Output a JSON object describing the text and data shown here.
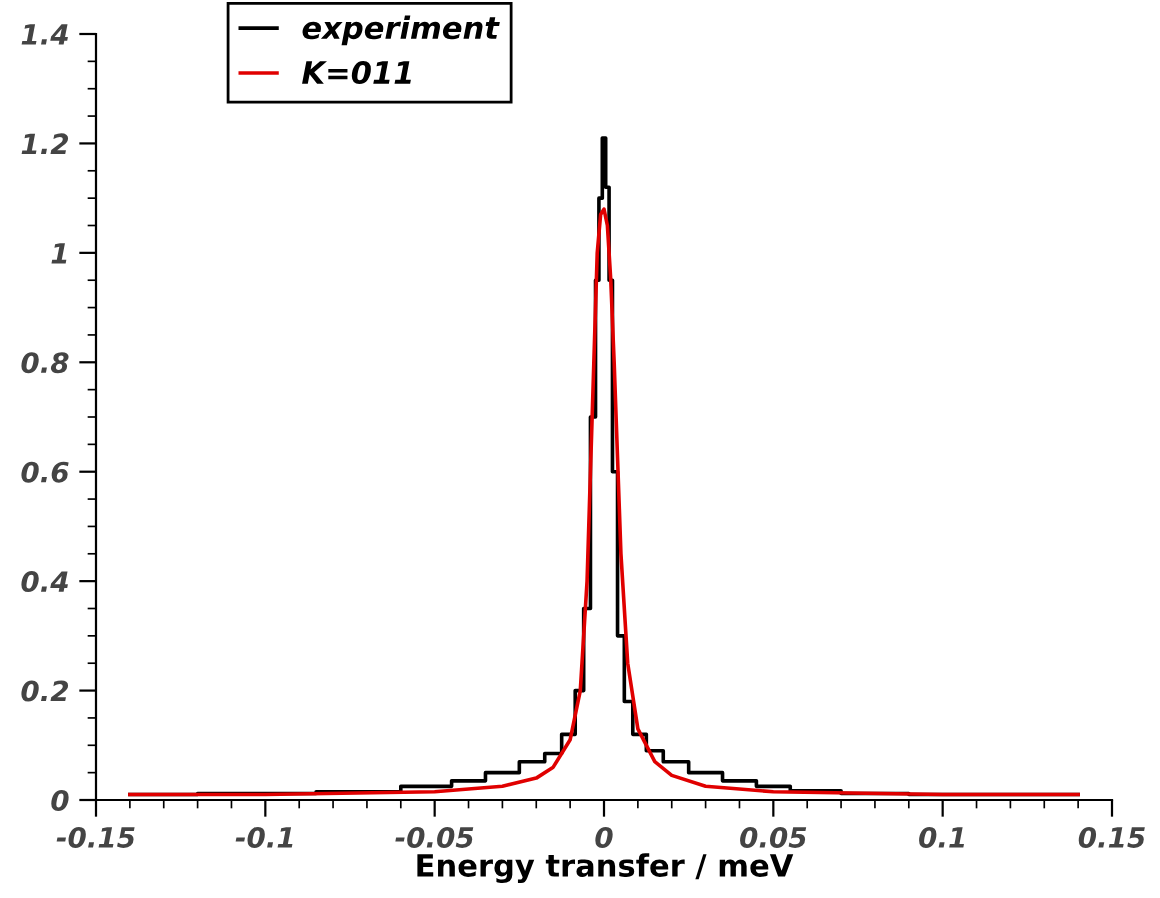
{
  "chart_data": {
    "type": "line",
    "xlabel": "Energy transfer / meV",
    "xlim": [
      -0.15,
      0.15
    ],
    "ylim": [
      0,
      1.4
    ],
    "xticks": [
      -0.15,
      -0.1,
      -0.05,
      0,
      0.05,
      0.1,
      0.15
    ],
    "yticks": [
      0,
      0.2,
      0.4,
      0.6,
      0.8,
      1,
      1.2,
      1.4
    ],
    "grid": false,
    "legend": "top left",
    "marker": "none",
    "line_style": "solid",
    "series": [
      {
        "name": "experiment",
        "type": "step",
        "color": "#000000",
        "x": [
          -0.14,
          -0.1,
          -0.07,
          -0.05,
          -0.04,
          -0.03,
          -0.02,
          -0.015,
          -0.01,
          -0.007,
          -0.005,
          -0.003,
          -0.002,
          -0.001,
          0,
          0.001,
          0.002,
          0.003,
          0.005,
          0.007,
          0.01,
          0.015,
          0.02,
          0.03,
          0.04,
          0.05,
          0.06,
          0.08,
          0.1,
          0.14
        ],
        "values": [
          0.01,
          0.012,
          0.015,
          0.025,
          0.035,
          0.05,
          0.07,
          0.085,
          0.12,
          0.2,
          0.35,
          0.7,
          0.95,
          1.1,
          1.21,
          1.12,
          0.95,
          0.6,
          0.3,
          0.18,
          0.12,
          0.09,
          0.07,
          0.05,
          0.035,
          0.025,
          0.017,
          0.012,
          0.01,
          0.01
        ]
      },
      {
        "name": "K=011",
        "color": "#e00000",
        "x": [
          -0.14,
          -0.1,
          -0.05,
          -0.03,
          -0.02,
          -0.015,
          -0.01,
          -0.007,
          -0.005,
          -0.003,
          -0.002,
          -0.001,
          0,
          0.001,
          0.002,
          0.003,
          0.005,
          0.007,
          0.01,
          0.015,
          0.02,
          0.03,
          0.05,
          0.1,
          0.14
        ],
        "values": [
          0.01,
          0.01,
          0.015,
          0.025,
          0.04,
          0.06,
          0.11,
          0.2,
          0.4,
          0.8,
          1.0,
          1.07,
          1.08,
          1.05,
          0.95,
          0.8,
          0.45,
          0.25,
          0.13,
          0.07,
          0.045,
          0.025,
          0.015,
          0.01,
          0.01
        ]
      }
    ]
  }
}
